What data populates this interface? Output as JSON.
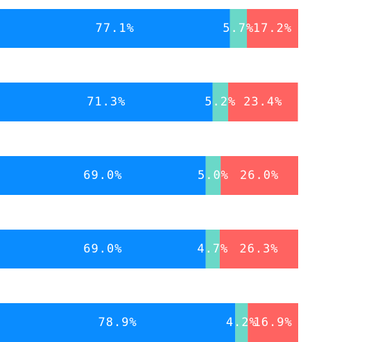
{
  "chart_data": {
    "type": "bar",
    "orientation": "horizontal",
    "stacked": true,
    "percent_stacked": true,
    "categories": [
      "",
      "",
      "",
      "",
      ""
    ],
    "series": [
      {
        "color": "#0a8cff",
        "values": [
          77.1,
          71.3,
          69.0,
          69.0,
          78.9
        ]
      },
      {
        "color": "#6ad8c8",
        "values": [
          5.7,
          5.2,
          5.0,
          4.7,
          4.2
        ]
      },
      {
        "color": "#ff6361",
        "values": [
          17.2,
          23.4,
          26.0,
          26.3,
          16.9
        ]
      }
    ],
    "data_labels": [
      [
        "77.1%",
        "5.7%",
        "17.2%"
      ],
      [
        "71.3%",
        "5.2%",
        "23.4%"
      ],
      [
        "69.0%",
        "5.0%",
        "26.0%"
      ],
      [
        "69.0%",
        "4.7%",
        "26.3%"
      ],
      [
        "78.9%",
        "4.2%",
        "16.9%"
      ]
    ],
    "xlim": [
      0,
      100
    ],
    "grid": false,
    "legend": "none",
    "title": "",
    "xlabel": "",
    "ylabel": ""
  }
}
